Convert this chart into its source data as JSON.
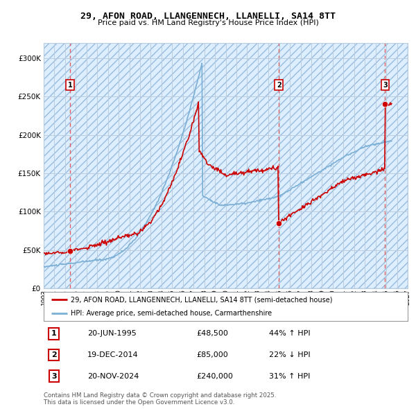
{
  "title1": "29, AFON ROAD, LLANGENNECH, LLANELLI, SA14 8TT",
  "title2": "Price paid vs. HM Land Registry's House Price Index (HPI)",
  "legend_line1": "29, AFON ROAD, LLANGENNECH, LLANELLI, SA14 8TT (semi-detached house)",
  "legend_line2": "HPI: Average price, semi-detached house, Carmarthenshire",
  "footer": "Contains HM Land Registry data © Crown copyright and database right 2025.\nThis data is licensed under the Open Government Licence v3.0.",
  "sales": [
    {
      "num": 1,
      "date_label": "20-JUN-1995",
      "date_x": 1995.47,
      "price": 48500,
      "hpi_pct": "44% ↑ HPI"
    },
    {
      "num": 2,
      "date_label": "19-DEC-2014",
      "date_x": 2014.97,
      "price": 85000,
      "hpi_pct": "22% ↓ HPI"
    },
    {
      "num": 3,
      "date_label": "20-NOV-2024",
      "date_x": 2024.89,
      "price": 240000,
      "hpi_pct": "31% ↑ HPI"
    }
  ],
  "price_line_color": "#cc0000",
  "hpi_line_color": "#7bafd4",
  "dashed_line_color": "#e06060",
  "grid_color": "#bbccdd",
  "ylim": [
    0,
    320000
  ],
  "yticks": [
    0,
    50000,
    100000,
    150000,
    200000,
    250000,
    300000
  ],
  "xlim": [
    1993,
    2027
  ],
  "xticks": [
    1993,
    1994,
    1995,
    1996,
    1997,
    1998,
    1999,
    2000,
    2001,
    2002,
    2003,
    2004,
    2005,
    2006,
    2007,
    2008,
    2009,
    2010,
    2011,
    2012,
    2013,
    2014,
    2015,
    2016,
    2017,
    2018,
    2019,
    2020,
    2021,
    2022,
    2023,
    2024,
    2025,
    2026,
    2027
  ]
}
